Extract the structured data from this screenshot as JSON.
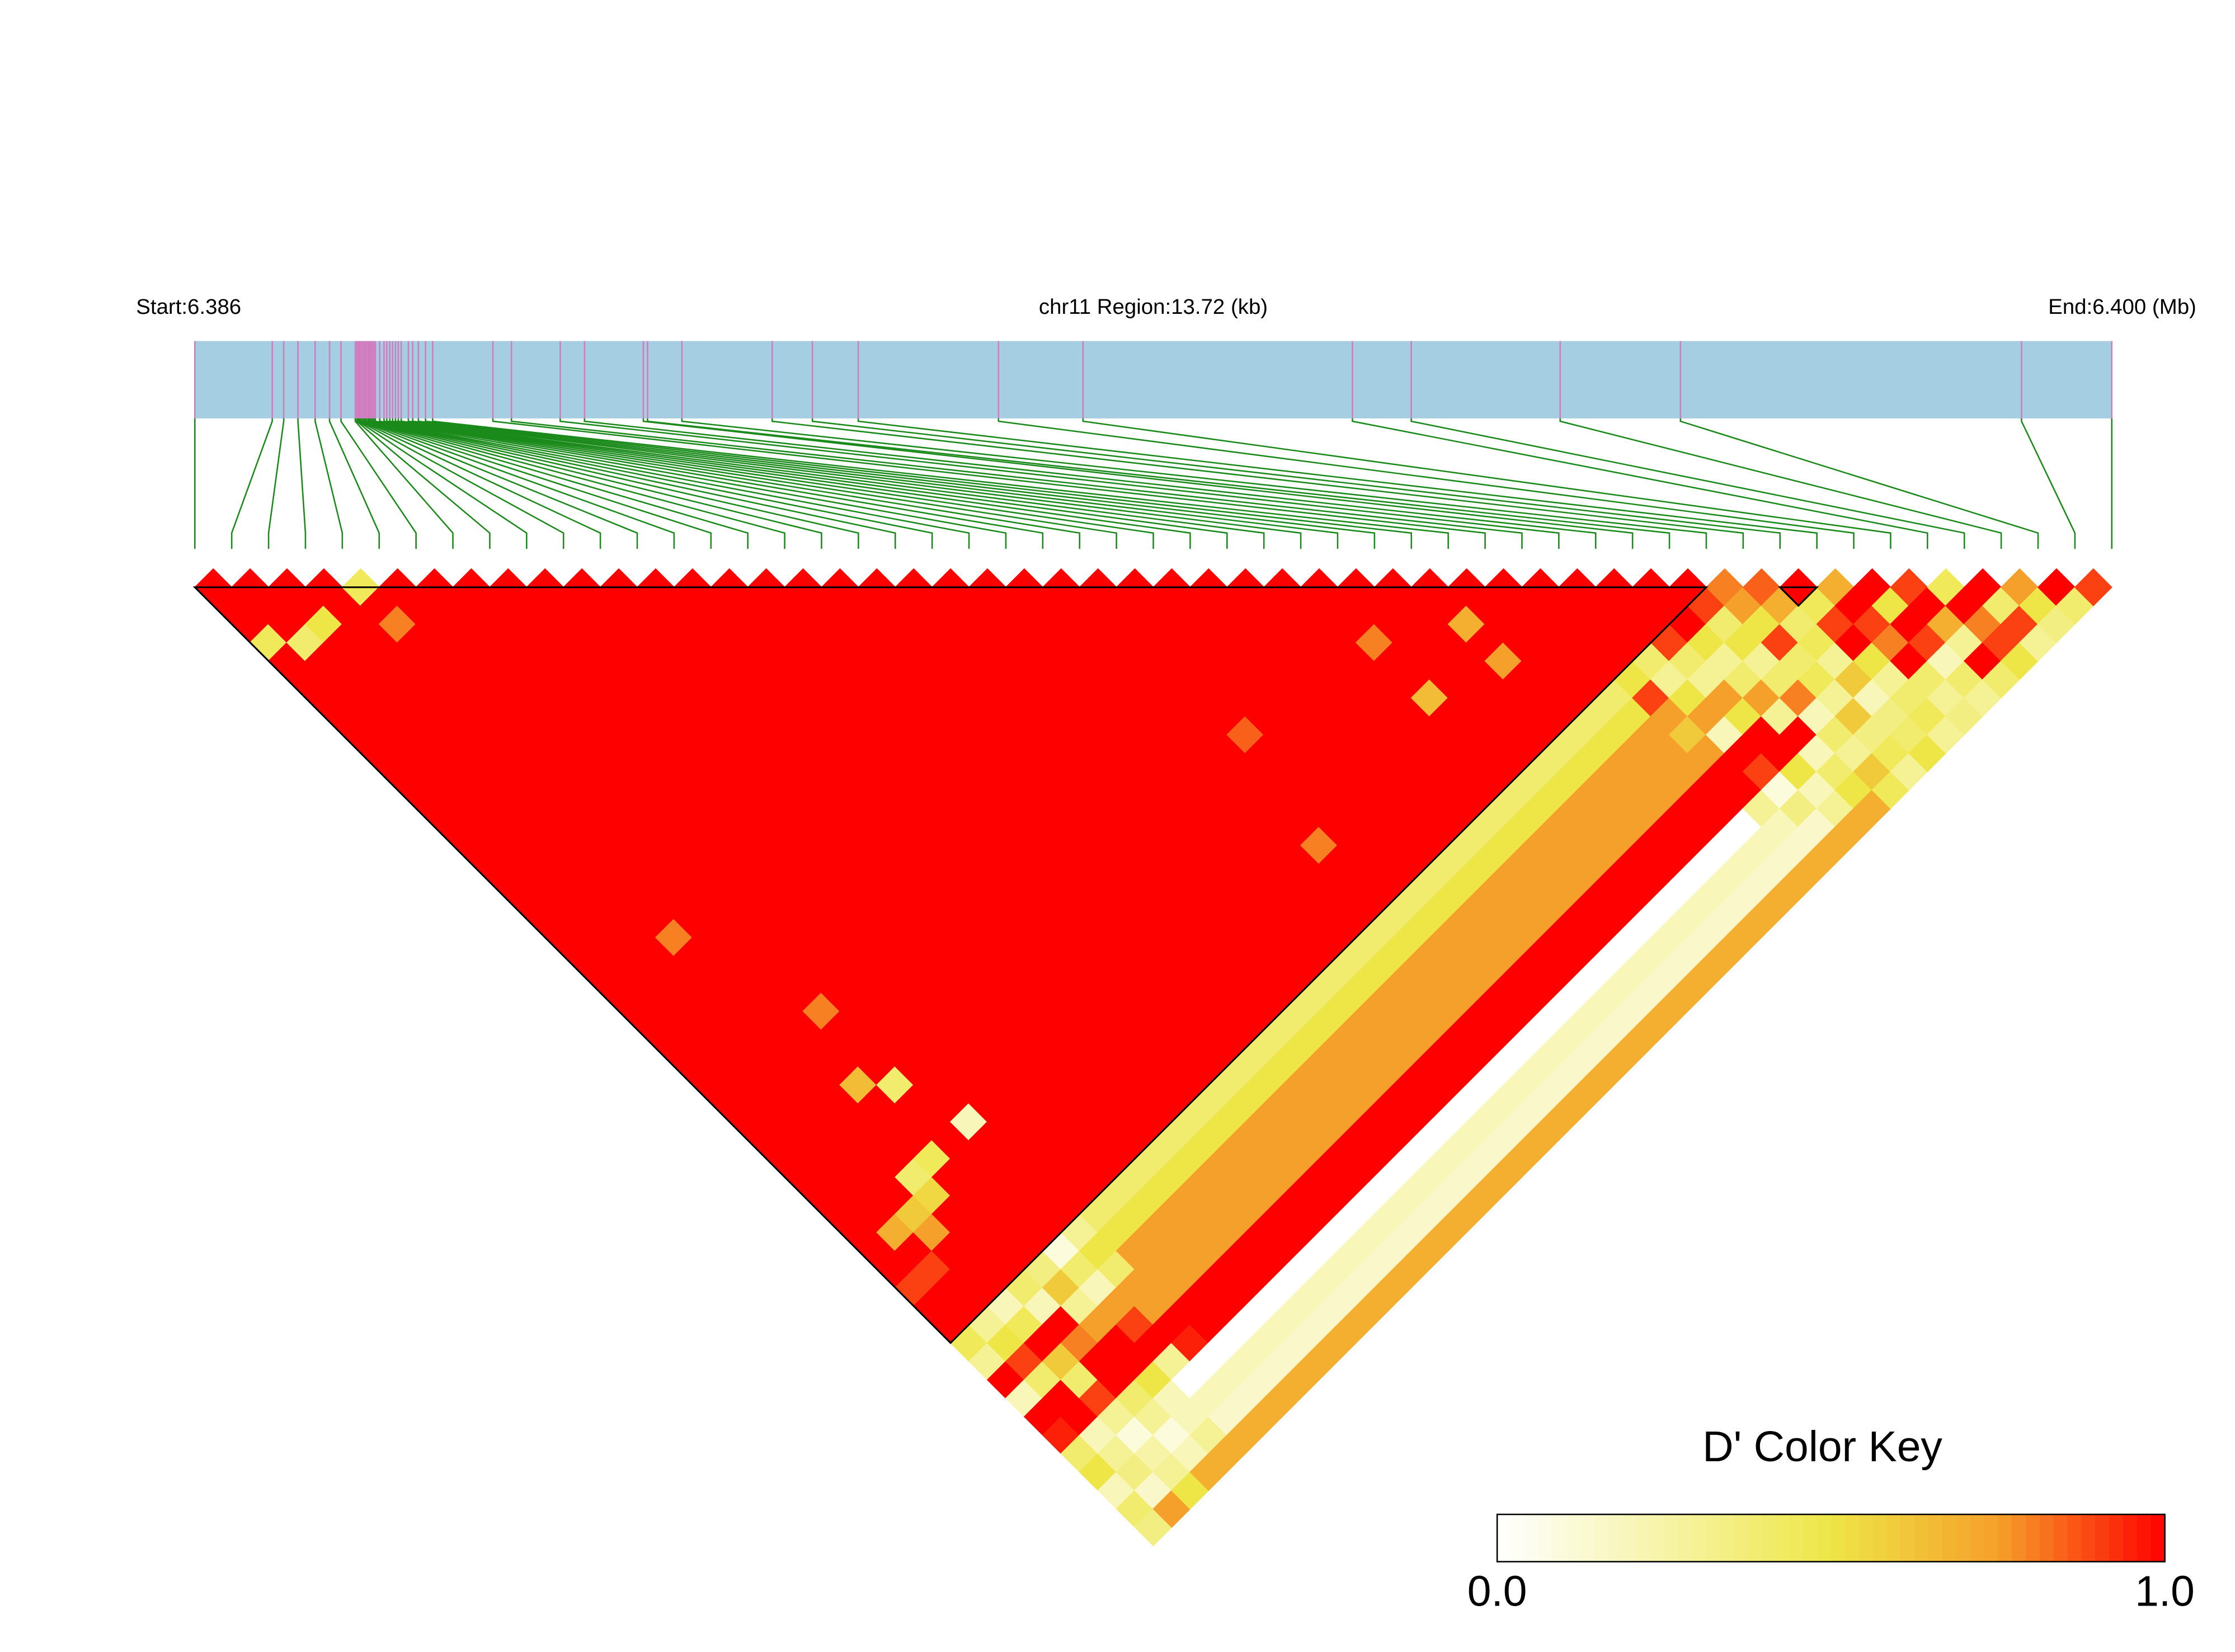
{
  "chart_data": {
    "type": "ld_heatmap",
    "start_label": "Start:6.386",
    "region_label": "chr11 Region:13.72 (kb)",
    "end_label": "End:6.400 (Mb)",
    "key_title": "D' Color Key",
    "key_lim": [
      0,
      1
    ],
    "key_ticks": [
      {
        "value": 0,
        "label": "0.0"
      },
      {
        "value": 1,
        "label": "1.0"
      }
    ],
    "colorscale": [
      "#ffffff",
      "#f7f4a8",
      "#eee647",
      "#f5a02a",
      "#ff0000"
    ],
    "bar_color": "#a6cee3",
    "tick_color": "#d07cbf",
    "connector_color": "#1a8a1a",
    "xlim": [
      0,
      13.72
    ],
    "positions": [
      0,
      0.554,
      0.636,
      0.738,
      0.861,
      0.964,
      1.046,
      1.148,
      1.159,
      1.169,
      1.179,
      1.189,
      1.2,
      1.21,
      1.22,
      1.23,
      1.241,
      1.251,
      1.261,
      1.272,
      1.282,
      1.292,
      1.323,
      1.354,
      1.374,
      1.395,
      1.415,
      1.436,
      1.456,
      1.477,
      1.528,
      1.559,
      1.6,
      1.651,
      1.702,
      2.133,
      2.266,
      2.615,
      2.789,
      3.21,
      3.24,
      3.486,
      4.132,
      4.42,
      4.748,
      5.752,
      6.357,
      8.285,
      8.706,
      9.772,
      10.633,
      13.074,
      13.72
    ],
    "blocks": [
      [
        0,
        41
      ],
      [
        43,
        44
      ]
    ],
    "dprime": [
      [
        1,
        1,
        1,
        0.45,
        1,
        1,
        1,
        1,
        1,
        1,
        1,
        1,
        1,
        1,
        1,
        1,
        1,
        1,
        1,
        1,
        1,
        1,
        1,
        1,
        1,
        1,
        1,
        1,
        1,
        1,
        1,
        1,
        1,
        1,
        1,
        1,
        1,
        1,
        0.9,
        1,
        1,
        0.45,
        0.3,
        1,
        0.2,
        1,
        0.95,
        0.4,
        0.5,
        0.2,
        0.4,
        0.35
      ],
      [
        1,
        1,
        1,
        0.4,
        1,
        1,
        1,
        1,
        1,
        1,
        1,
        1,
        1,
        1,
        1,
        1,
        1,
        1,
        1,
        1,
        1,
        1,
        1,
        1,
        1,
        1,
        1,
        1,
        1,
        1,
        1,
        1,
        1,
        1,
        1,
        0.7,
        1,
        0.9,
        1,
        1,
        0.3,
        0.5,
        0.9,
        0.4,
        1,
        1,
        0.2,
        0.3,
        0.35,
        0.15,
        0.75
      ],
      [
        1,
        1,
        0.5,
        1,
        1,
        1,
        1,
        1,
        1,
        1,
        1,
        1,
        1,
        1,
        1,
        1,
        1,
        1,
        1,
        1,
        1,
        1,
        1,
        1,
        1,
        1,
        1,
        1,
        1,
        1,
        1,
        1,
        1,
        1,
        0.6,
        0.75,
        1,
        1,
        1,
        0.2,
        0.45,
        1,
        0.6,
        0.4,
        0.9,
        0.3,
        0.1,
        0.25,
        0.3,
        0.5
      ],
      [
        1,
        1,
        1,
        1,
        1,
        1,
        1,
        1,
        1,
        1,
        1,
        1,
        1,
        1,
        1,
        1,
        1,
        1,
        1,
        0.8,
        1,
        1,
        1,
        1,
        1,
        1,
        1,
        1,
        1,
        1,
        1,
        1,
        0.4,
        0.55,
        1,
        1,
        1,
        1,
        0.4,
        0.2,
        1,
        0.8,
        1,
        1,
        0.4,
        0.3,
        0.1,
        0.2,
        0.7
      ],
      [
        0.45,
        1,
        0.8,
        1,
        1,
        1,
        1,
        1,
        1,
        1,
        1,
        1,
        1,
        1,
        1,
        1,
        1,
        1,
        1,
        1,
        1,
        1,
        1,
        1,
        1,
        1,
        1,
        0.65,
        1,
        1,
        1,
        0.45,
        1,
        1,
        1,
        1,
        1,
        0.35,
        0.6,
        0.3,
        0.75,
        1,
        1,
        0.5,
        0.2,
        0.2,
        0.3,
        0.7
      ],
      [
        1,
        1,
        1,
        1,
        1,
        1,
        1,
        1,
        1,
        1,
        1,
        1,
        1,
        1,
        1,
        1,
        1,
        1,
        1,
        1,
        1,
        1,
        1,
        0.8,
        1,
        1,
        1,
        0.4,
        1,
        1,
        1,
        1,
        1,
        1,
        1,
        1,
        0.1,
        0.4,
        0.2,
        0.75,
        0.9,
        1,
        0.3,
        0,
        0.2,
        0.15,
        0.7
      ],
      [
        1,
        1,
        1,
        1,
        1,
        1,
        1,
        1,
        1,
        1,
        1,
        1,
        1,
        1,
        1,
        1,
        1,
        1,
        1,
        1,
        1,
        1,
        1,
        1,
        1,
        1,
        1,
        1,
        1,
        0.2,
        1,
        1,
        1,
        1,
        1,
        0.3,
        0.5,
        0.4,
        0.75,
        0.75,
        1,
        0.95,
        0,
        0.2,
        0.15,
        0.7
      ],
      [
        1,
        1,
        1,
        1,
        1,
        1,
        1,
        1,
        1,
        1,
        1,
        1,
        1,
        1,
        1,
        1,
        1,
        1,
        1,
        1,
        1,
        1,
        1,
        1,
        1,
        1,
        1,
        1,
        1,
        1,
        1,
        1,
        1,
        1,
        0.4,
        0.5,
        0.75,
        0.75,
        0.75,
        1,
        1,
        0,
        0.2,
        0.15,
        0.7
      ],
      [
        1,
        1,
        1,
        1,
        1,
        1,
        1,
        1,
        1,
        1,
        1,
        1,
        1,
        1,
        1,
        1,
        1,
        1,
        1,
        1,
        1,
        1,
        1,
        1,
        1,
        1,
        1,
        1,
        1,
        1,
        1,
        1,
        1,
        0.4,
        0.5,
        0.75,
        0.75,
        0.75,
        1,
        1,
        0,
        0.2,
        0.15,
        0.7
      ],
      [
        1,
        1,
        1,
        1,
        1,
        1,
        1,
        1,
        1,
        1,
        1,
        1,
        1,
        1,
        1,
        1,
        1,
        1,
        1,
        1,
        1,
        1,
        1,
        1,
        1,
        1,
        1,
        1,
        1,
        1,
        1,
        1,
        0.4,
        0.5,
        0.75,
        0.75,
        0.75,
        1,
        1,
        0,
        0.2,
        0.15,
        0.7
      ],
      [
        1,
        1,
        1,
        1,
        1,
        1,
        1,
        1,
        1,
        1,
        1,
        1,
        1,
        1,
        1,
        1,
        1,
        1,
        1,
        1,
        1,
        1,
        1,
        1,
        1,
        1,
        1,
        1,
        1,
        1,
        1,
        0.4,
        0.5,
        0.75,
        0.75,
        0.75,
        1,
        1,
        0,
        0.2,
        0.15,
        0.7
      ],
      [
        1,
        1,
        1,
        1,
        1,
        1,
        1,
        1,
        1,
        1,
        1,
        1,
        1,
        1,
        1,
        1,
        1,
        1,
        1,
        1,
        1,
        1,
        1,
        1,
        1,
        1,
        1,
        1,
        1,
        1,
        0.4,
        0.5,
        0.75,
        0.75,
        0.75,
        1,
        1,
        0,
        0.2,
        0.15,
        0.7
      ],
      [
        1,
        1,
        1,
        1,
        1,
        1,
        1,
        1,
        1,
        1,
        1,
        1,
        1,
        1,
        1,
        1,
        1,
        1,
        1,
        1,
        1,
        1,
        1,
        1,
        1,
        1,
        1,
        1,
        1,
        0.4,
        0.5,
        0.75,
        0.75,
        0.75,
        1,
        1,
        0,
        0.2,
        0.15,
        0.7
      ],
      [
        1,
        1,
        1,
        1,
        1,
        1,
        1,
        1,
        1,
        1,
        1,
        1,
        1,
        1,
        1,
        1,
        1,
        1,
        1,
        1,
        1,
        1,
        1,
        1,
        1,
        1,
        1,
        1,
        0.4,
        0.5,
        0.75,
        0.75,
        0.75,
        1,
        1,
        0,
        0.2,
        0.15,
        0.7
      ],
      [
        1,
        1,
        1,
        1,
        1,
        1,
        1,
        1,
        1,
        1,
        1,
        1,
        1,
        1,
        1,
        1,
        1,
        1,
        1,
        1,
        1,
        1,
        1,
        1,
        1,
        1,
        1,
        0.4,
        0.5,
        0.75,
        0.75,
        0.75,
        1,
        1,
        0,
        0.2,
        0.15,
        0.7
      ],
      [
        1,
        1,
        1,
        1,
        1,
        1,
        1,
        1,
        1,
        1,
        1,
        1,
        1,
        1,
        1,
        1,
        1,
        1,
        1,
        1,
        1,
        1,
        1,
        1,
        1,
        1,
        0.4,
        0.5,
        0.75,
        0.75,
        0.75,
        1,
        1,
        0,
        0.2,
        0.15,
        0.7
      ],
      [
        1,
        1,
        1,
        1,
        1,
        1,
        1,
        1,
        1,
        1,
        1,
        1,
        1,
        1,
        1,
        1,
        1,
        1,
        1,
        1,
        1,
        1,
        1,
        1,
        1,
        0.4,
        0.5,
        0.75,
        0.75,
        0.75,
        1,
        1,
        0,
        0.2,
        0.15,
        0.7
      ],
      [
        1,
        1,
        1,
        1,
        1,
        1,
        1,
        1,
        1,
        1,
        1,
        1,
        1,
        1,
        1,
        1,
        1,
        1,
        1,
        1,
        1,
        1,
        1,
        1,
        0.4,
        0.5,
        0.75,
        0.75,
        0.75,
        1,
        1,
        0,
        0.2,
        0.15,
        0.7
      ],
      [
        1,
        1,
        1,
        1,
        1,
        1,
        1,
        1,
        1,
        1,
        1,
        1,
        1,
        1,
        1,
        1,
        1,
        1,
        1,
        1,
        1,
        1,
        1,
        0.4,
        0.5,
        0.75,
        0.75,
        0.75,
        1,
        1,
        0,
        0.2,
        0.15,
        0.7
      ],
      [
        1,
        1,
        1,
        1,
        1,
        1,
        1,
        1,
        1,
        1,
        1,
        1,
        1,
        1,
        1,
        1,
        1,
        1,
        1,
        1,
        1,
        1,
        0.4,
        0.5,
        0.75,
        0.75,
        0.75,
        1,
        1,
        0,
        0.2,
        0.15,
        0.7
      ],
      [
        1,
        1,
        1,
        1,
        1,
        1,
        1,
        1,
        1,
        1,
        1,
        1,
        1,
        1,
        1,
        1,
        1,
        1,
        1,
        1,
        1,
        0.4,
        0.5,
        0.75,
        0.75,
        0.75,
        1,
        1,
        0,
        0.2,
        0.15,
        0.7
      ],
      [
        1,
        1,
        1,
        1,
        1,
        1,
        1,
        1,
        1,
        1,
        1,
        1,
        1,
        1,
        1,
        1,
        1,
        1,
        1,
        1,
        0.4,
        0.5,
        0.75,
        0.75,
        0.75,
        1,
        1,
        0,
        0.2,
        0.15,
        0.7
      ],
      [
        1,
        1,
        1,
        1,
        1,
        1,
        1,
        1,
        1,
        1,
        1,
        1,
        1,
        1,
        1,
        1,
        1,
        1,
        1,
        0.4,
        0.5,
        0.75,
        0.75,
        0.75,
        1,
        1,
        0,
        0.2,
        0.15,
        0.7
      ],
      [
        1,
        1,
        1,
        1,
        1,
        1,
        1,
        1,
        1,
        1,
        1,
        1,
        1,
        1,
        0.8,
        1,
        1,
        1,
        0.4,
        0.5,
        0.75,
        0.75,
        0.75,
        1,
        1,
        0,
        0.2,
        0.15,
        0.7
      ],
      [
        1,
        1,
        1,
        1,
        1,
        1,
        1,
        1,
        0.85,
        1,
        1,
        1,
        1,
        1,
        1,
        1,
        1,
        0.4,
        0.5,
        0.75,
        0.75,
        0.75,
        1,
        1,
        0,
        0.2,
        0.15,
        0.7
      ],
      [
        1,
        1,
        1,
        1,
        1,
        1,
        1,
        1,
        1,
        1,
        1,
        1,
        1,
        1,
        1,
        1,
        0.4,
        0.5,
        0.75,
        0.75,
        0.75,
        1,
        1,
        0,
        0.2,
        0.15,
        0.7
      ],
      [
        1,
        1,
        1,
        1,
        1,
        1,
        1,
        1,
        1,
        1,
        1,
        1,
        1,
        1,
        1,
        0.4,
        0.5,
        0.75,
        0.75,
        0.75,
        1,
        1,
        0,
        0.2,
        0.15,
        0.7
      ],
      [
        1,
        1,
        1,
        1,
        1,
        1,
        1,
        1,
        1,
        1,
        1,
        1,
        1,
        1,
        0.4,
        0.5,
        0.75,
        0.75,
        0.75,
        1,
        1,
        0,
        0.2,
        0.15,
        0.7
      ],
      [
        1,
        1,
        1,
        1,
        1,
        1,
        1,
        1,
        1,
        1,
        1,
        1,
        1,
        0.4,
        0.5,
        0.75,
        0.75,
        0.75,
        1,
        1,
        0,
        0.2,
        0.15,
        0.7
      ],
      [
        1,
        1,
        1,
        1,
        1,
        1,
        1,
        1,
        1,
        1,
        1,
        1,
        0.4,
        0.5,
        0.75,
        0.75,
        0.75,
        1,
        1,
        0,
        0.2,
        0.15,
        0.7
      ],
      [
        1,
        1,
        1,
        0.8,
        1,
        1,
        0.65,
        1,
        1,
        1,
        1,
        0.4,
        0.5,
        0.75,
        0.75,
        0.75,
        1,
        1,
        0,
        0.2,
        0.15,
        0.7
      ],
      [
        1,
        1,
        1,
        1,
        1,
        1,
        1,
        1,
        1,
        1,
        0.4,
        0.5,
        0.75,
        0.75,
        0.75,
        1,
        1,
        0,
        0.2,
        0.15,
        0.7
      ],
      [
        1,
        1,
        1,
        1,
        1,
        1,
        1,
        1,
        1,
        0.4,
        0.5,
        0.75,
        0.75,
        0.75,
        1,
        1,
        0,
        0.2,
        0.15,
        0.7
      ],
      [
        1,
        1,
        0.7,
        1,
        0.75,
        1,
        1,
        1,
        0.4,
        0.5,
        0.75,
        0.75,
        0.75,
        1,
        1,
        0,
        0.2,
        0.15,
        0.7
      ],
      [
        1,
        1,
        1,
        1,
        1,
        1,
        1,
        0.4,
        0.5,
        0.75,
        0.75,
        0.75,
        1,
        1,
        0,
        0.2,
        0.15,
        0.7
      ],
      [
        1,
        1,
        1,
        1,
        1,
        1,
        0.4,
        0.5,
        0.75,
        0.75,
        0.75,
        1,
        1,
        0,
        0.2,
        0.15,
        0.7
      ],
      [
        1,
        1,
        1,
        1,
        1,
        0.5,
        0.9,
        0.75,
        0.6,
        0.75,
        1,
        1,
        0.3,
        0.2,
        0.15,
        0.7
      ],
      [
        1,
        1,
        1,
        1,
        0.4,
        0.3,
        0.5,
        0.75,
        0.2,
        1,
        0.9,
        0.1,
        0.35,
        0.15,
        0.7
      ],
      [
        1,
        1,
        1,
        0.9,
        0.4,
        0.3,
        0.75,
        0.5,
        1,
        1,
        0.5,
        0.2,
        0.3,
        0.7
      ],
      [
        1,
        1,
        1,
        0.5,
        0.3,
        0.4,
        0.75,
        0.3,
        1,
        0.2,
        0.4,
        0.5,
        0.7
      ],
      [
        1,
        0.9,
        0.4,
        0.5,
        0.3,
        0.4,
        0.8,
        0.2,
        0.4,
        0.3,
        0.6,
        0.45
      ],
      [
        0.8,
        0.75,
        0.5,
        0.9,
        0.4,
        0.45,
        0.3,
        0.6,
        0.35,
        0.45,
        0.3
      ],
      [
        0.85,
        0.7,
        0.4,
        0.45,
        0.3,
        0.6,
        0.2,
        0.35,
        0.4,
        0.5
      ],
      [
        1,
        0.45,
        0.9,
        1,
        0.5,
        0.3,
        0.4,
        0.45,
        0.3
      ],
      [
        0.7,
        1,
        0.9,
        0.8,
        1,
        0.4,
        0.3,
        0.35
      ],
      [
        1,
        0.5,
        1,
        0.9,
        0.2,
        0.4,
        0.3
      ],
      [
        0.9,
        1,
        0.7,
        0.3,
        1,
        0.4
      ],
      [
        0.45,
        1,
        0.8,
        0.9,
        0.5
      ],
      [
        1,
        0.4,
        0.9,
        0.3
      ],
      [
        0.75,
        0.5,
        0.35
      ],
      [
        1,
        0.4
      ],
      [
        0.9
      ]
    ]
  }
}
